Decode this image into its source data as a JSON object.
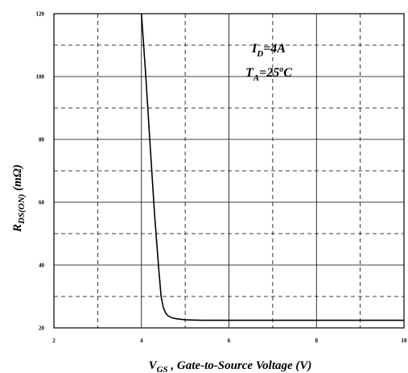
{
  "chart_data": {
    "type": "line",
    "xlabel_main": "V",
    "xlabel_sub": "GS",
    "xlabel_rest": " , Gate-to-Source Voltage (V)",
    "ylabel_main": "R",
    "ylabel_sub": "DS(ON)",
    "ylabel_rest": " (m",
    "ylabel_omega": "Ω",
    "ylabel_close": ")",
    "xlim": [
      2,
      10
    ],
    "ylim": [
      20,
      120
    ],
    "xticks": [
      "2",
      "4",
      "6",
      "8",
      "10"
    ],
    "yticks": [
      "20",
      "40",
      "60",
      "80",
      "100",
      "120"
    ],
    "xtick_values": [
      2,
      4,
      6,
      8,
      10
    ],
    "ytick_values": [
      20,
      40,
      60,
      80,
      100,
      120
    ],
    "grid": "on",
    "annotations": [
      {
        "main": "I",
        "sub": "D",
        "rest": "=4A"
      },
      {
        "main": "T",
        "sub": "A",
        "rest": "=25",
        "sup": "o",
        "tail": "C"
      }
    ],
    "series": [
      {
        "x": [
          4.0,
          4.1,
          4.2,
          4.3,
          4.4,
          4.45,
          4.5,
          4.55,
          4.6,
          4.7,
          4.8,
          5.0,
          5.2,
          5.4,
          5.6,
          6.0,
          7.0,
          8.0,
          9.0,
          10.0
        ],
        "y": [
          120,
          100,
          78,
          56,
          38,
          30,
          26.5,
          24.8,
          23.9,
          23.2,
          22.9,
          22.6,
          22.5,
          22.4,
          22.4,
          22.4,
          22.4,
          22.4,
          22.4,
          22.4
        ]
      }
    ]
  }
}
